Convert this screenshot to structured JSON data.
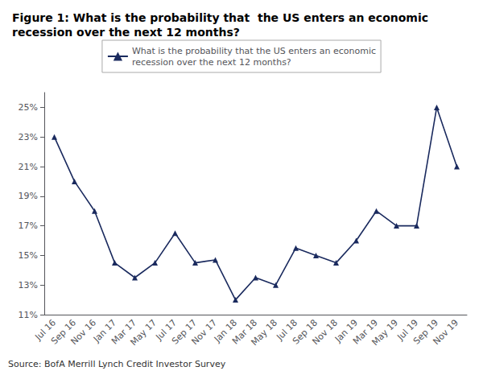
{
  "chart_data": {
    "type": "line",
    "title": "Figure 1: What is the probability that  the US enters an economic\nrecession over the next 12 months?",
    "categories": [
      "Jul 16",
      "Sep 16",
      "Nov 16",
      "Jan 17",
      "Mar 17",
      "May 17",
      "Jul 17",
      "Sep 17",
      "Nov 17",
      "Jan 18",
      "Mar 18",
      "May 18",
      "Jul 18",
      "Sep 18",
      "Nov 18",
      "Jan 19",
      "Mar 19",
      "May 19",
      "Jul 19",
      "Sep 19",
      "Nov 19"
    ],
    "series": [
      {
        "name": "What is the probability that the US enters an economic\nrecession over the next 12 months?",
        "color": "#1a2a5e",
        "marker": "triangle",
        "values": [
          23.0,
          20.0,
          18.0,
          14.5,
          13.5,
          14.5,
          16.5,
          14.5,
          14.7,
          12.0,
          13.5,
          13.0,
          15.5,
          15.0,
          14.5,
          16.0,
          18.0,
          17.0,
          17.0,
          25.0,
          21.0
        ]
      }
    ],
    "ylim": [
      11,
      26
    ],
    "yticks": [
      {
        "value": 11,
        "label": "11%"
      },
      {
        "value": 13,
        "label": "13%"
      },
      {
        "value": 15,
        "label": "15%"
      },
      {
        "value": 17,
        "label": "17%"
      },
      {
        "value": 19,
        "label": "19%"
      },
      {
        "value": 21,
        "label": "21%"
      },
      {
        "value": 23,
        "label": "23%"
      },
      {
        "value": 25,
        "label": "25%"
      }
    ],
    "annotations": [
      "Source: BofA Merrill Lynch Credit Investor Survey"
    ],
    "legend": "top",
    "grid": false
  }
}
